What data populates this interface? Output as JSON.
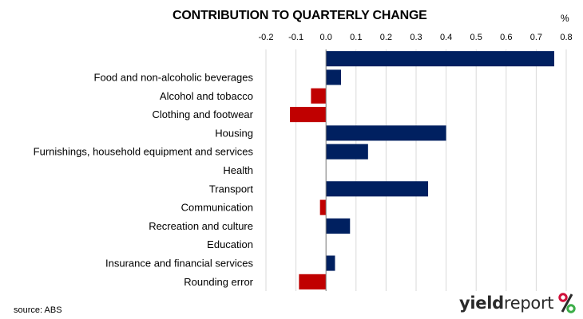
{
  "header": {
    "title": "CONTRIBUTION TO QUARTERLY CHANGE",
    "unit": "%"
  },
  "footer": {
    "source": "source: ABS",
    "brand_primary": "yield",
    "brand_secondary": "report"
  },
  "colors": {
    "positive": "#002060",
    "negative": "#C00000",
    "brand_red": "#d0103a",
    "brand_green": "#3cae49"
  },
  "chart_data": {
    "type": "bar",
    "orientation": "horizontal",
    "title": "CONTRIBUTION TO QUARTERLY CHANGE",
    "unit": "%",
    "categories": [
      "",
      "Food and non-alcoholic beverages",
      "Alcohol and tobacco",
      "Clothing and footwear",
      "Housing",
      "Furnishings, household equipment and services",
      "Health",
      "Transport",
      "Communication",
      "Recreation and culture",
      "Education",
      "Insurance and financial services",
      "Rounding error"
    ],
    "values": [
      0.76,
      0.05,
      -0.05,
      -0.12,
      0.4,
      0.14,
      0.0,
      0.34,
      -0.02,
      0.08,
      0.0,
      0.03,
      -0.09
    ],
    "xlim": [
      -0.2,
      0.8
    ],
    "xticks": [
      -0.2,
      -0.1,
      0.0,
      0.1,
      0.2,
      0.3,
      0.4,
      0.5,
      0.6,
      0.7,
      0.8
    ],
    "xtick_labels": [
      "-0.2",
      "-0.1",
      "0.0",
      "0.1",
      "0.2",
      "0.3",
      "0.4",
      "0.5",
      "0.6",
      "0.7",
      "0.8"
    ],
    "grid": true,
    "legend": "none",
    "tick_position": "top"
  }
}
